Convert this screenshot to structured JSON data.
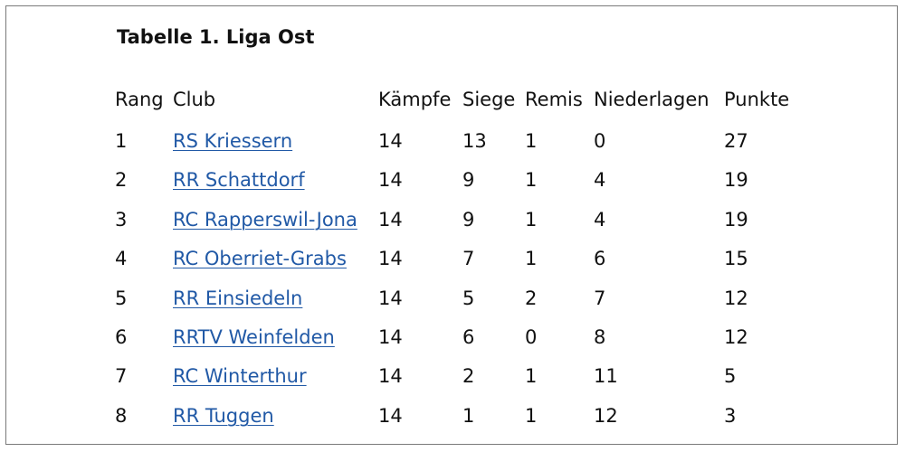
{
  "title": "Tabelle 1. Liga Ost",
  "table": {
    "headers": [
      "Rang",
      "Club",
      "Kämpfe",
      "Siege",
      "Remis",
      "Niederlagen",
      "Punkte"
    ],
    "rows": [
      {
        "rang": "1",
        "club": "RS Kriessern",
        "kampfe": "14",
        "siege": "13",
        "remis": "1",
        "niederlagen": "0",
        "punkte": "27"
      },
      {
        "rang": "2",
        "club": "RR Schattdorf",
        "kampfe": "14",
        "siege": "9",
        "remis": "1",
        "niederlagen": "4",
        "punkte": "19"
      },
      {
        "rang": "3",
        "club": "RC Rapperswil-Jona",
        "kampfe": "14",
        "siege": "9",
        "remis": "1",
        "niederlagen": "4",
        "punkte": "19"
      },
      {
        "rang": "4",
        "club": "RC Oberriet-Grabs",
        "kampfe": "14",
        "siege": "7",
        "remis": "1",
        "niederlagen": "6",
        "punkte": "15"
      },
      {
        "rang": "5",
        "club": "RR Einsiedeln",
        "kampfe": "14",
        "siege": "5",
        "remis": "2",
        "niederlagen": "7",
        "punkte": "12"
      },
      {
        "rang": "6",
        "club": "RRTV Weinfelden",
        "kampfe": "14",
        "siege": "6",
        "remis": "0",
        "niederlagen": "8",
        "punkte": "12"
      },
      {
        "rang": "7",
        "club": "RC Winterthur",
        "kampfe": "14",
        "siege": "2",
        "remis": "1",
        "niederlagen": "11",
        "punkte": "5"
      },
      {
        "rang": "8",
        "club": "RR Tuggen",
        "kampfe": "14",
        "siege": "1",
        "remis": "1",
        "niederlagen": "12",
        "punkte": "3"
      }
    ]
  },
  "colors": {
    "link": "#2159a6",
    "border": "#7a7a7a",
    "text": "#111111"
  }
}
